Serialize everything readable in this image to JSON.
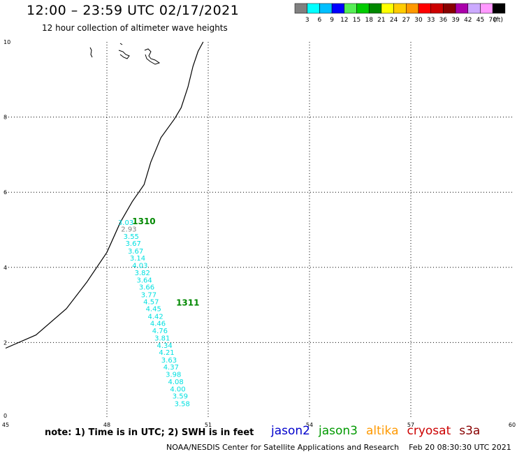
{
  "title": "12:00 – 23:59 UTC 02/17/2021",
  "subtitle": "12 hour collection of altimeter wave heights",
  "legend": {
    "labels": [
      "3",
      "6",
      "9",
      "12",
      "15",
      "18",
      "21",
      "24",
      "27",
      "30",
      "33",
      "36",
      "39",
      "42",
      "45",
      "70"
    ],
    "unit": "(ft)",
    "colors": [
      "#808080",
      "#00ffff",
      "#00bfff",
      "#0000ff",
      "#55ee55",
      "#00cc00",
      "#008800",
      "#ffff00",
      "#ffcc00",
      "#ff9900",
      "#ff0000",
      "#cc0000",
      "#880000",
      "#aa00aa",
      "#ccaaff",
      "#ff99ff",
      "#000000"
    ]
  },
  "map": {
    "x_ticks": [
      "45",
      "48",
      "51",
      "54",
      "57",
      "60"
    ],
    "y_ticks": [
      "0",
      "2",
      "4",
      "6",
      "8",
      "10"
    ],
    "lon_range": [
      45,
      60
    ],
    "lat_range": [
      0,
      10
    ]
  },
  "track": {
    "passes": [
      {
        "label": "1310",
        "lon": 48.75,
        "lat": 5.15
      },
      {
        "label": "1311",
        "lon": 50.05,
        "lat": 2.98
      }
    ],
    "readings": [
      {
        "value": "3.03",
        "lon": 48.56,
        "lat": 5.13,
        "color": "#00e0e0"
      },
      {
        "value": "2.93",
        "lon": 48.65,
        "lat": 4.95,
        "color": "#808080"
      },
      {
        "value": "3.55",
        "lon": 48.72,
        "lat": 4.76,
        "color": "#00e0e0"
      },
      {
        "value": "3.67",
        "lon": 48.78,
        "lat": 4.57,
        "color": "#00e0e0"
      },
      {
        "value": "3.67",
        "lon": 48.85,
        "lat": 4.37,
        "color": "#00e0e0"
      },
      {
        "value": "3.14",
        "lon": 48.91,
        "lat": 4.18,
        "color": "#00e0e0"
      },
      {
        "value": "4.03",
        "lon": 48.98,
        "lat": 3.99,
        "color": "#00e0e0"
      },
      {
        "value": "3.82",
        "lon": 49.05,
        "lat": 3.79,
        "color": "#00e0e0"
      },
      {
        "value": "3.64",
        "lon": 49.11,
        "lat": 3.6,
        "color": "#00e0e0"
      },
      {
        "value": "3.66",
        "lon": 49.18,
        "lat": 3.41,
        "color": "#00e0e0"
      },
      {
        "value": "3.77",
        "lon": 49.24,
        "lat": 3.21,
        "color": "#00e0e0"
      },
      {
        "value": "4.57",
        "lon": 49.31,
        "lat": 3.02,
        "color": "#00e0e0"
      },
      {
        "value": "4.45",
        "lon": 49.38,
        "lat": 2.83,
        "color": "#00e0e0"
      },
      {
        "value": "4.42",
        "lon": 49.44,
        "lat": 2.63,
        "color": "#00e0e0"
      },
      {
        "value": "4.46",
        "lon": 49.51,
        "lat": 2.44,
        "color": "#00e0e0"
      },
      {
        "value": "4.76",
        "lon": 49.57,
        "lat": 2.25,
        "color": "#00e0e0"
      },
      {
        "value": "3.81",
        "lon": 49.64,
        "lat": 2.05,
        "color": "#00e0e0"
      },
      {
        "value": "4.34",
        "lon": 49.71,
        "lat": 1.86,
        "color": "#00e0e0"
      },
      {
        "value": "4.21",
        "lon": 49.77,
        "lat": 1.67,
        "color": "#00e0e0"
      },
      {
        "value": "3.63",
        "lon": 49.84,
        "lat": 1.47,
        "color": "#00e0e0"
      },
      {
        "value": "4.37",
        "lon": 49.9,
        "lat": 1.28,
        "color": "#00e0e0"
      },
      {
        "value": "3.98",
        "lon": 49.97,
        "lat": 1.09,
        "color": "#00e0e0"
      },
      {
        "value": "4.08",
        "lon": 50.04,
        "lat": 0.89,
        "color": "#00e0e0"
      },
      {
        "value": "4.00",
        "lon": 50.1,
        "lat": 0.7,
        "color": "#00e0e0"
      },
      {
        "value": "3.59",
        "lon": 50.17,
        "lat": 0.51,
        "color": "#00e0e0"
      },
      {
        "value": "3.58",
        "lon": 50.23,
        "lat": 0.31,
        "color": "#00e0e0"
      }
    ]
  },
  "coastline": [
    [
      45.0,
      1.85
    ],
    [
      45.9,
      2.2
    ],
    [
      46.8,
      2.9
    ],
    [
      47.4,
      3.6
    ],
    [
      48.0,
      4.4
    ],
    [
      48.4,
      5.2
    ],
    [
      48.75,
      5.75
    ],
    [
      49.1,
      6.2
    ],
    [
      49.3,
      6.8
    ],
    [
      49.6,
      7.45
    ],
    [
      50.0,
      7.95
    ],
    [
      50.2,
      8.25
    ],
    [
      50.4,
      8.8
    ],
    [
      50.55,
      9.35
    ],
    [
      50.7,
      9.75
    ],
    [
      50.85,
      10.0
    ]
  ],
  "note": "note: 1) Time is in UTC; 2) SWH is in feet",
  "satellites": [
    {
      "name": "jason2",
      "color": "#0000cc"
    },
    {
      "name": "jason3",
      "color": "#009900"
    },
    {
      "name": "altika",
      "color": "#ff9900"
    },
    {
      "name": "cryosat",
      "color": "#cc0000"
    },
    {
      "name": "s3a",
      "color": "#880000"
    }
  ],
  "credit": "NOAA/NESDIS Center for Satellite Applications and Research",
  "timestamp": "Feb 20 08:30:30 UTC 2021"
}
